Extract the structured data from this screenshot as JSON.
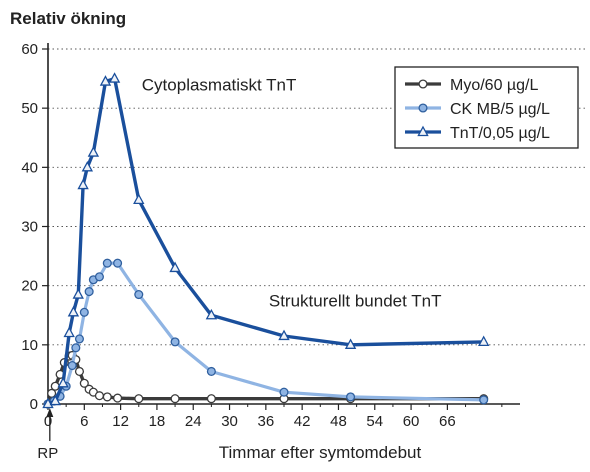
{
  "chart_data": {
    "type": "line",
    "ylabel": "Relativ ökning",
    "xlabel": "Timmar efter symtomdebut",
    "xlim": [
      0,
      78
    ],
    "ylim": [
      0,
      60
    ],
    "x_ticks": [
      0,
      6,
      12,
      18,
      24,
      30,
      36,
      42,
      48,
      54,
      60,
      66
    ],
    "y_ticks": [
      0,
      10,
      20,
      30,
      40,
      50,
      60
    ],
    "rp_label": "RP",
    "rp_x": 0.3,
    "grid": "dotted horizontal",
    "legend_position": "top-right",
    "annotations": [
      {
        "text": "Cytoplasmatiskt TnT",
        "x": 15.5,
        "y": 53
      },
      {
        "text": "Strukturellt bundet TnT",
        "x": 36.5,
        "y": 16.5
      }
    ],
    "series": [
      {
        "name": "Myo/60 µg/L",
        "color": "#3b3b3b",
        "marker": "circle",
        "x": [
          0,
          0.6,
          1.2,
          2,
          2.7,
          3.5,
          4,
          4.6,
          5.2,
          6,
          6.8,
          7.5,
          8.5,
          9.8,
          11.5,
          15,
          21,
          27,
          39,
          50,
          72
        ],
        "y": [
          0,
          1.8,
          3,
          5,
          7,
          8.1,
          8.2,
          7.5,
          5.5,
          3.5,
          2.5,
          2,
          1.4,
          1.2,
          1,
          0.9,
          0.9,
          0.9,
          0.9,
          0.9,
          0.9
        ]
      },
      {
        "name": "CK MB/5 µg/L",
        "color": "#8fb4e3",
        "marker": "circle",
        "x": [
          0,
          1,
          2,
          3,
          4,
          4.6,
          5.2,
          6,
          6.8,
          7.5,
          8.5,
          9.8,
          11.5,
          15,
          21,
          27,
          39,
          50,
          72
        ],
        "y": [
          0,
          0.5,
          1.3,
          3,
          6.5,
          9.5,
          11,
          15.5,
          19,
          21,
          21.5,
          23.8,
          23.8,
          18.5,
          10.5,
          5.5,
          2,
          1.2,
          0.7
        ]
      },
      {
        "name": "TnT/0,05 µg/L",
        "color": "#1a4f9c",
        "marker": "triangle",
        "x": [
          0,
          1.2,
          2.5,
          3.5,
          4.2,
          5,
          5.8,
          6.5,
          7.5,
          9.5,
          11,
          15,
          21,
          27,
          39,
          50,
          72
        ],
        "y": [
          0,
          0.5,
          3.5,
          12,
          15.5,
          18.5,
          37,
          40,
          42.5,
          54.5,
          55,
          34.5,
          23,
          15,
          11.5,
          10,
          10.5
        ]
      }
    ]
  }
}
